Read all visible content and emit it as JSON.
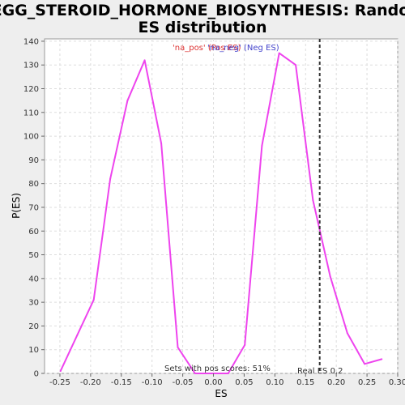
{
  "chart_data": {
    "type": "line",
    "title_lines": [
      "KEGG_STEROID_HORMONE_BIOSYNTHESIS: Random",
      "ES distribution"
    ],
    "xlabel": "ES",
    "ylabel": "P(ES)",
    "xlim": [
      -0.275,
      0.3
    ],
    "ylim": [
      0,
      141
    ],
    "x_ticks": [
      -0.25,
      -0.2,
      -0.15,
      -0.1,
      -0.05,
      0.0,
      0.05,
      0.1,
      0.15,
      0.2,
      0.25,
      0.3
    ],
    "x_tick_labels": [
      "-0.25",
      "-0.20",
      "-0.15",
      "-0.10",
      "-0.05",
      "0.00",
      "0.05",
      "0.10",
      "0.15",
      "0.20",
      "0.25",
      "0.30"
    ],
    "y_ticks": [
      0,
      10,
      20,
      30,
      40,
      50,
      60,
      70,
      80,
      90,
      100,
      110,
      120,
      130,
      140
    ],
    "grid": true,
    "series": [
      {
        "name": "curve",
        "color": "#ee44ee",
        "x": [
          -0.249,
          -0.222,
          -0.195,
          -0.168,
          -0.14,
          -0.112,
          -0.085,
          -0.058,
          -0.03,
          -0.003,
          0.024,
          0.051,
          0.079,
          0.107,
          0.134,
          0.162,
          0.19,
          0.218,
          0.246,
          0.274
        ],
        "y": [
          1,
          16,
          31,
          82,
          115,
          132,
          97,
          11,
          0,
          0,
          0,
          12,
          96,
          135,
          130,
          73,
          41,
          17,
          4,
          6
        ]
      }
    ],
    "legend": [
      {
        "label": "'na_pos' (Pos ES)",
        "color": "#dd3333"
      },
      {
        "label": "'na_neg' (Neg ES)",
        "color": "#4444cc"
      }
    ],
    "legend_placement": "top-center",
    "reference_line": {
      "x": 0.173,
      "label": "Real ES 0.2",
      "color": "#333333"
    },
    "annotation": "Sets with pos scores: 51%"
  }
}
